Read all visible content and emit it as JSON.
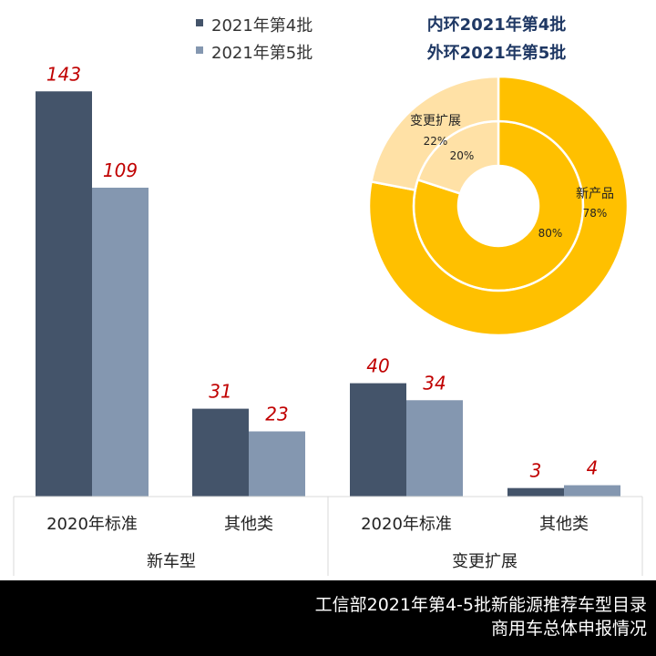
{
  "chart_data": [
    {
      "type": "bar",
      "groups": [
        {
          "label": "新车型",
          "categories": [
            "2020年标准",
            "其他类"
          ]
        },
        {
          "label": "变更扩展",
          "categories": [
            "2020年标准",
            "其他类"
          ]
        }
      ],
      "series": [
        {
          "name": "2021年第4批",
          "color": "#44546a",
          "values": [
            143,
            31,
            40,
            3
          ]
        },
        {
          "name": "2021年第5批",
          "color": "#8497b0",
          "values": [
            109,
            23,
            34,
            4
          ]
        }
      ],
      "legend": "top-left",
      "grid": false,
      "label_color": "#c00000"
    },
    {
      "type": "pie",
      "subtype": "donut",
      "legend_text": [
        "内环2021年第4批",
        "外环2021年第5批"
      ],
      "categories": [
        "新产品",
        "变更扩展"
      ],
      "colors": [
        "#ffc000",
        "#ffe1a6"
      ],
      "series": [
        {
          "name": "内环",
          "values": [
            80,
            20
          ],
          "labels": [
            "80%",
            "20%"
          ]
        },
        {
          "name": "外环",
          "values": [
            78,
            22
          ],
          "labels": [
            "78%",
            "22%"
          ]
        }
      ]
    }
  ],
  "footer": {
    "line1": "工信部2021年第4-5批新能源推荐车型目录",
    "line2": "商用车总体申报情况"
  }
}
